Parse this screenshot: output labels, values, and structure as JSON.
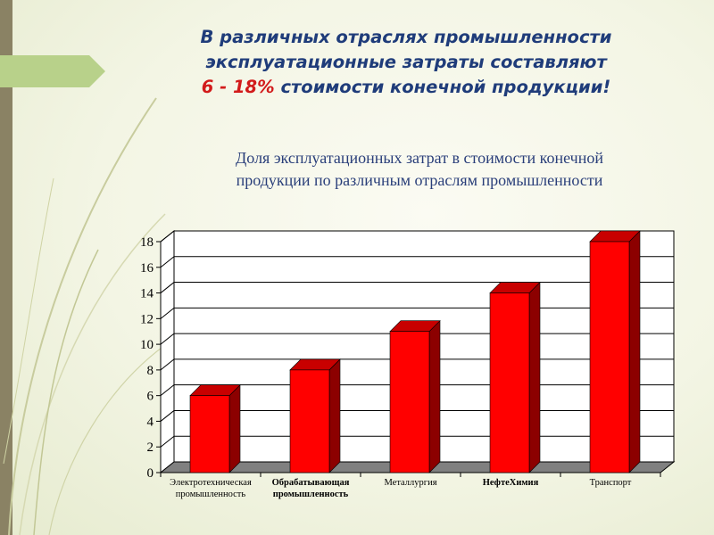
{
  "slide": {
    "title_line1": "В различных отраслях промышленности",
    "title_line2": "эксплуатационные затраты составляют",
    "title_highlight": "6 - 18%",
    "title_line3_rest": " стоимости конечной продукции!",
    "subtitle_line1": "Доля эксплуатационных затрат в стоимости конечной",
    "subtitle_line2": "продукции по различным отраслям промышленности"
  },
  "colors": {
    "title": "#1f3c7a",
    "highlight": "#d21a1a",
    "bar": "#ff0000",
    "bar_side": "#8c0000",
    "bar_top": "#c80000",
    "floor": "#808080"
  },
  "chart_data": {
    "type": "bar",
    "title": "",
    "xlabel": "",
    "ylabel": "",
    "categories": [
      [
        "Электротехническая",
        "промышленность"
      ],
      [
        "Обрабатывающая",
        "промышленность"
      ],
      [
        "Металлургия"
      ],
      [
        "НефтеХимия"
      ],
      [
        "Транспорт"
      ]
    ],
    "values": [
      6,
      8,
      11,
      14,
      18
    ],
    "ylim": [
      0,
      18
    ],
    "yticks": [
      0,
      2,
      4,
      6,
      8,
      10,
      12,
      14,
      16,
      18
    ],
    "grid": true,
    "style": "3d"
  }
}
